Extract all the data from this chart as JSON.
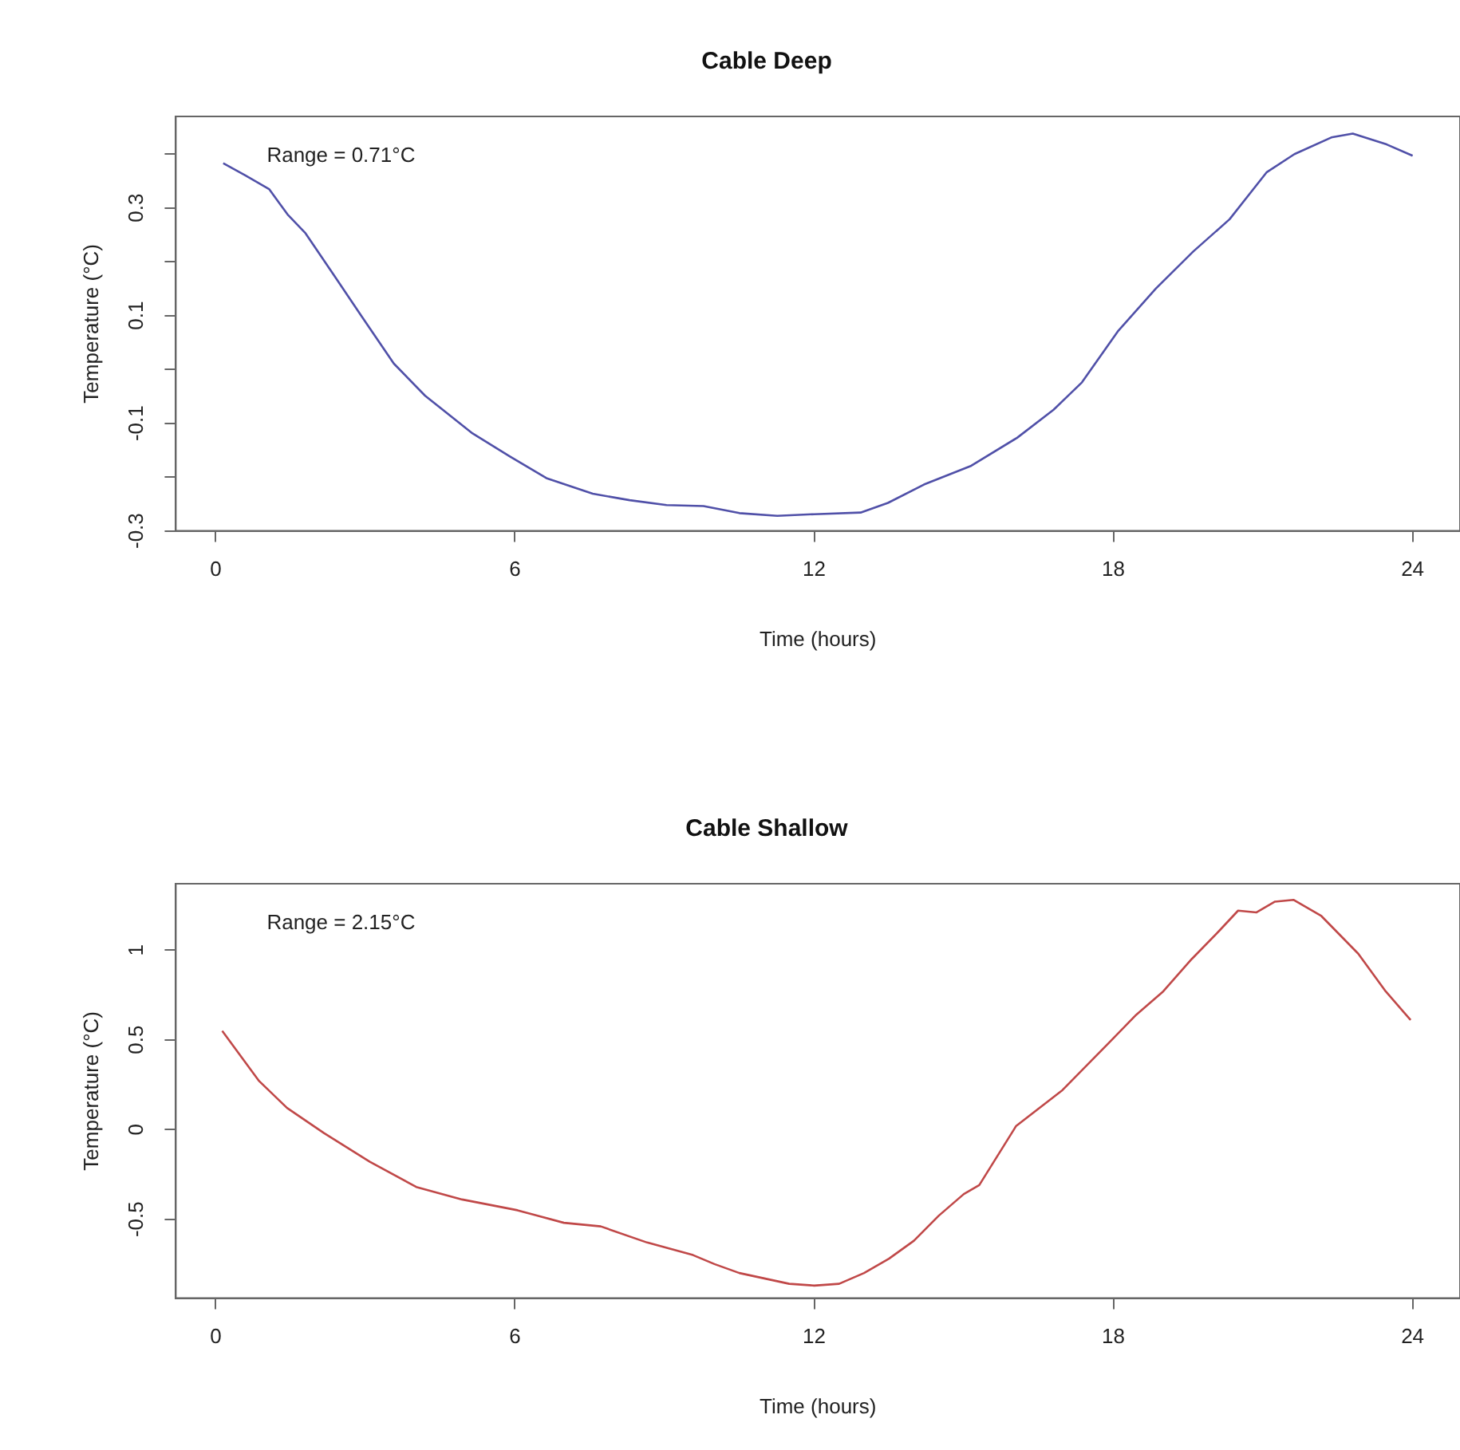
{
  "chart_data": [
    {
      "type": "line",
      "title": "Cable Deep",
      "xlabel": "Time (hours)",
      "ylabel": "Temperature (°C)",
      "annotations": [
        "Range = 0.71°C"
      ],
      "grid": false,
      "legend": false,
      "marker": "none",
      "xlim": [
        -0.8,
        24.95
      ],
      "xticks": [
        0,
        6,
        12,
        18,
        24
      ],
      "ylim": [
        -0.3,
        0.47
      ],
      "yticks": [
        -0.3,
        {
          "value": -0.2,
          "label": null
        },
        -0.1,
        {
          "value": 0,
          "label": null
        },
        0.1,
        {
          "value": 0.2,
          "label": null
        },
        0.3,
        {
          "value": 0.4,
          "label": null
        }
      ],
      "x": [
        0.15,
        0.6,
        1.07,
        1.44,
        1.8,
        2.37,
        2.93,
        3.57,
        4.2,
        5.15,
        5.9,
        6.63,
        7.56,
        8.3,
        9.04,
        9.78,
        10.5,
        11.26,
        12.0,
        12.93,
        13.48,
        14.2,
        15.15,
        16.07,
        16.8,
        17.37,
        18.1,
        18.85,
        19.6,
        20.33,
        21.07,
        21.63,
        22.37,
        22.8,
        23.48,
        24
      ],
      "series": [
        {
          "color": "#5050a8",
          "values": [
            0.383,
            0.36,
            0.335,
            0.288,
            0.253,
            0.175,
            0.098,
            0.011,
            -0.049,
            -0.119,
            -0.162,
            -0.202,
            -0.231,
            -0.243,
            -0.252,
            -0.254,
            -0.267,
            -0.272,
            -0.269,
            -0.266,
            -0.248,
            -0.214,
            -0.179,
            -0.127,
            -0.075,
            -0.024,
            0.072,
            0.15,
            0.219,
            0.279,
            0.366,
            0.4,
            0.431,
            0.438,
            0.418,
            0.397
          ]
        }
      ]
    },
    {
      "type": "line",
      "title": "Cable Shallow",
      "xlabel": "Time (hours)",
      "ylabel": "Temperature (°C)",
      "annotations": [
        "Range = 2.15°C"
      ],
      "grid": false,
      "legend": false,
      "marker": "none",
      "xlim": [
        -0.8,
        24.95
      ],
      "xticks": [
        0,
        6,
        12,
        18,
        24
      ],
      "ylim": [
        -0.94,
        1.37
      ],
      "yticks": [
        -0.5,
        0.0,
        0.5,
        1.0
      ],
      "x": [
        0.13,
        0.87,
        1.43,
        2.17,
        3.09,
        4.02,
        4.94,
        6.05,
        6.98,
        7.72,
        8.65,
        9.57,
        10.0,
        10.5,
        11.0,
        11.5,
        12.0,
        12.5,
        13.0,
        13.5,
        14.0,
        14.5,
        15.0,
        15.31,
        16.05,
        16.98,
        17.9,
        18.46,
        19.0,
        19.57,
        20.13,
        20.5,
        20.87,
        21.24,
        21.61,
        22.17,
        22.91,
        23.46,
        23.96
      ],
      "series": [
        {
          "color": "#c04848",
          "values": [
            0.55,
            0.27,
            0.12,
            -0.02,
            -0.18,
            -0.32,
            -0.39,
            -0.45,
            -0.52,
            -0.54,
            -0.63,
            -0.7,
            -0.75,
            -0.8,
            -0.83,
            -0.86,
            -0.87,
            -0.86,
            -0.8,
            -0.72,
            -0.62,
            -0.48,
            -0.36,
            -0.31,
            0.02,
            0.22,
            0.48,
            0.64,
            0.77,
            0.95,
            1.11,
            1.22,
            1.21,
            1.27,
            1.28,
            1.19,
            0.98,
            0.77,
            0.61
          ]
        }
      ]
    }
  ]
}
